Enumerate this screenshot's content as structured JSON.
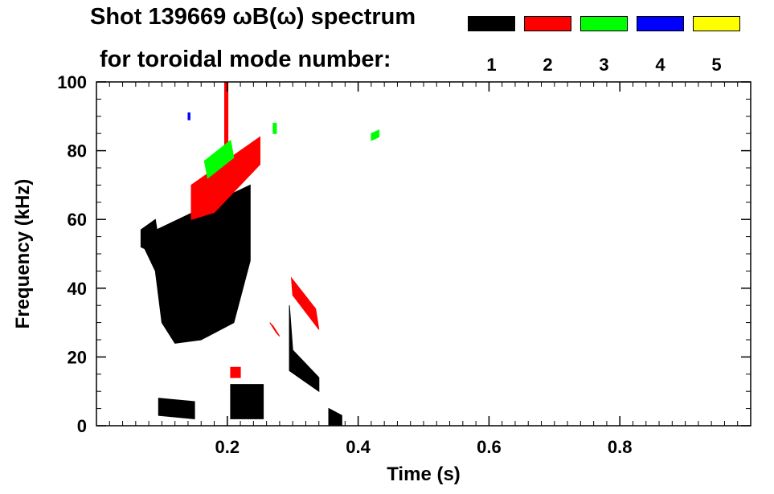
{
  "title": {
    "line1": "Shot 139669 ωB(ω) spectrum",
    "line2": "for toroidal mode number:"
  },
  "legend": [
    {
      "label": "1",
      "color": "#000000"
    },
    {
      "label": "2",
      "color": "#ff0000"
    },
    {
      "label": "3",
      "color": "#00ff00"
    },
    {
      "label": "4",
      "color": "#0000ff"
    },
    {
      "label": "5",
      "color": "#ffff00"
    }
  ],
  "chart_data": {
    "type": "heatmap",
    "title": "Shot 139669 ωB(ω) spectrum for toroidal mode number",
    "xlabel": "Time (s)",
    "ylabel": "Frequency (kHz)",
    "xlim": [
      0.0,
      1.0
    ],
    "ylim": [
      0,
      100
    ],
    "xticks": [
      0.2,
      0.4,
      0.6,
      0.8
    ],
    "xtick_labels": [
      "0.2",
      "0.4",
      "0.6",
      "0.8"
    ],
    "yticks": [
      0,
      20,
      40,
      60,
      80,
      100
    ],
    "ytick_labels": [
      "0",
      "20",
      "40",
      "60",
      "80",
      "100"
    ],
    "regions": [
      {
        "mode": 1,
        "label": "n=1 main band",
        "t": [
          0.07,
          0.235,
          0.235,
          0.21,
          0.16,
          0.12,
          0.1,
          0.09,
          0.07
        ],
        "f": [
          55,
          70,
          48,
          30,
          25,
          24,
          30,
          45,
          53
        ]
      },
      {
        "mode": 1,
        "label": "n=1 onset",
        "t": [
          0.068,
          0.09,
          0.1,
          0.09,
          0.068
        ],
        "f": [
          57,
          60,
          48,
          50,
          52
        ]
      },
      {
        "mode": 1,
        "label": "n=1 low band",
        "t": [
          0.095,
          0.15,
          0.15,
          0.095
        ],
        "f": [
          8,
          7,
          2,
          3
        ]
      },
      {
        "mode": 1,
        "label": "n=1 low patch",
        "t": [
          0.205,
          0.255,
          0.255,
          0.205
        ],
        "f": [
          12,
          12,
          2,
          2
        ]
      },
      {
        "mode": 1,
        "label": "n=1 chirp",
        "t": [
          0.295,
          0.3,
          0.34,
          0.34,
          0.295
        ],
        "f": [
          35,
          22,
          14,
          10,
          16
        ]
      },
      {
        "mode": 1,
        "label": "n=1 late",
        "t": [
          0.355,
          0.375,
          0.375,
          0.355
        ],
        "f": [
          5,
          3,
          0,
          0
        ]
      },
      {
        "mode": 2,
        "label": "n=2 band",
        "t": [
          0.145,
          0.25,
          0.25,
          0.18,
          0.145
        ],
        "f": [
          70,
          84,
          76,
          62,
          60
        ]
      },
      {
        "mode": 2,
        "label": "n=2 spike",
        "t": [
          0.196,
          0.201,
          0.201,
          0.196
        ],
        "f": [
          100,
          100,
          78,
          78
        ]
      },
      {
        "mode": 2,
        "label": "n=2 chirp",
        "t": [
          0.298,
          0.335,
          0.34,
          0.3
        ],
        "f": [
          43,
          34,
          28,
          38
        ]
      },
      {
        "mode": 2,
        "label": "n=2 low",
        "t": [
          0.205,
          0.22,
          0.22,
          0.205
        ],
        "f": [
          17,
          17,
          14,
          14
        ]
      },
      {
        "mode": 2,
        "label": "n=2 trace",
        "t": [
          0.265,
          0.275,
          0.28,
          0.27
        ],
        "f": [
          30,
          27,
          26,
          29
        ]
      },
      {
        "mode": 3,
        "label": "n=3 band",
        "t": [
          0.165,
          0.205,
          0.21,
          0.17
        ],
        "f": [
          77,
          83,
          78,
          72
        ]
      },
      {
        "mode": 3,
        "label": "n=3 dot",
        "t": [
          0.27,
          0.275,
          0.275,
          0.27
        ],
        "f": [
          88,
          88,
          85,
          85
        ]
      },
      {
        "mode": 3,
        "label": "n=3 dot",
        "t": [
          0.42,
          0.432,
          0.432,
          0.42
        ],
        "f": [
          85,
          86,
          84,
          83
        ]
      },
      {
        "mode": 4,
        "label": "n=4 dot",
        "t": [
          0.14,
          0.143,
          0.143,
          0.14
        ],
        "f": [
          91,
          91,
          89,
          89
        ]
      }
    ]
  }
}
